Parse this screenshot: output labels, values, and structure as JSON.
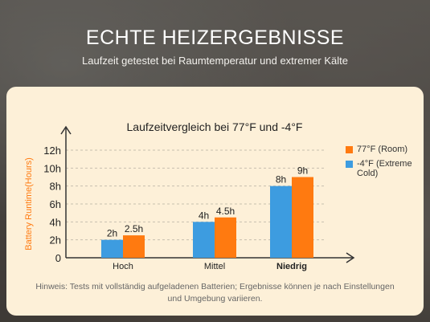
{
  "page": {
    "headline": "ECHTE HEIZERGEBNISSE",
    "subline": "Laufzeit getestet bei Raumtemperatur und extremer Kälte",
    "note": "Hinweis: Tests mit vollständig aufgeladenen Batterien; Ergebnisse können je nach Einstellungen und Umgebung variieren."
  },
  "chart_data": {
    "type": "bar",
    "title": "Laufzeitvergleich bei 77°F und -4°F",
    "ylabel": "Battery Runtime(Hours)",
    "xlabel": "",
    "categories": [
      "Hoch",
      "Mittel",
      "Niedrig"
    ],
    "series": [
      {
        "name": "-4°F (Extreme Cold)",
        "color": "#3d9ce0",
        "values": [
          2,
          4,
          8
        ],
        "labels": [
          "2h",
          "4h",
          "8h"
        ]
      },
      {
        "name": "77°F (Room)",
        "color": "#ff7a10",
        "values": [
          2.5,
          4.5,
          9
        ],
        "labels": [
          "2.5h",
          "4.5h",
          "9h"
        ]
      }
    ],
    "yticks": [
      "0",
      "2h",
      "4h",
      "6h",
      "8h",
      "10h",
      "12h"
    ],
    "ytick_values": [
      0,
      2,
      4,
      6,
      8,
      10,
      12
    ],
    "ylim": [
      0,
      12
    ],
    "grid": true,
    "legend": [
      {
        "label": "77°F (Room)",
        "color": "#ff7a10"
      },
      {
        "label": "-4°F (Extreme Cold)",
        "color": "#3d9ce0"
      }
    ],
    "legend_position": "right"
  }
}
